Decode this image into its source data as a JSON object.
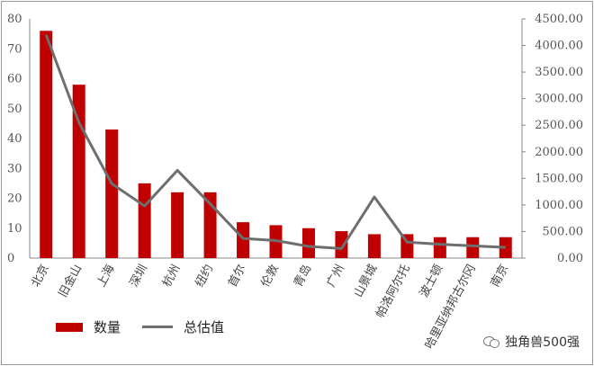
{
  "chart_data": {
    "type": "bar",
    "categories": [
      "北京",
      "旧金山",
      "上海",
      "深圳",
      "杭州",
      "纽约",
      "首尔",
      "伦敦",
      "青岛",
      "广州",
      "山景城",
      "帕洛阿尔托",
      "波士顿",
      "哈里亚纳邦古尔冈",
      "南京"
    ],
    "series": [
      {
        "name": "数量",
        "type": "bar",
        "axis": "left",
        "color": "#c00000",
        "values": [
          76,
          58,
          43,
          25,
          22,
          22,
          12,
          11,
          10,
          9,
          8,
          8,
          7,
          7,
          7
        ]
      },
      {
        "name": "总估值",
        "type": "line",
        "axis": "right",
        "color": "#6e6e6e",
        "values": [
          4200,
          2550,
          1400,
          980,
          1650,
          1020,
          370,
          330,
          220,
          180,
          1150,
          300,
          260,
          230,
          200
        ]
      }
    ],
    "y_left": {
      "ticks": [
        "0",
        "10",
        "20",
        "30",
        "40",
        "50",
        "60",
        "70",
        "80"
      ],
      "ylim": [
        0,
        80
      ]
    },
    "y_right": {
      "ticks": [
        "0.00",
        "500.00",
        "1000.00",
        "1500.00",
        "2000.00",
        "2500.00",
        "3000.00",
        "3500.00",
        "4000.00",
        "4500.00"
      ],
      "ylim": [
        0,
        4500
      ]
    },
    "legend": {
      "placement": "bottom-left",
      "items": [
        "数量",
        "总估值"
      ]
    },
    "grid": false,
    "xlabel": "",
    "ylabel": ""
  },
  "watermark": {
    "text": "独角兽500强",
    "icon": "wechat-icon"
  }
}
